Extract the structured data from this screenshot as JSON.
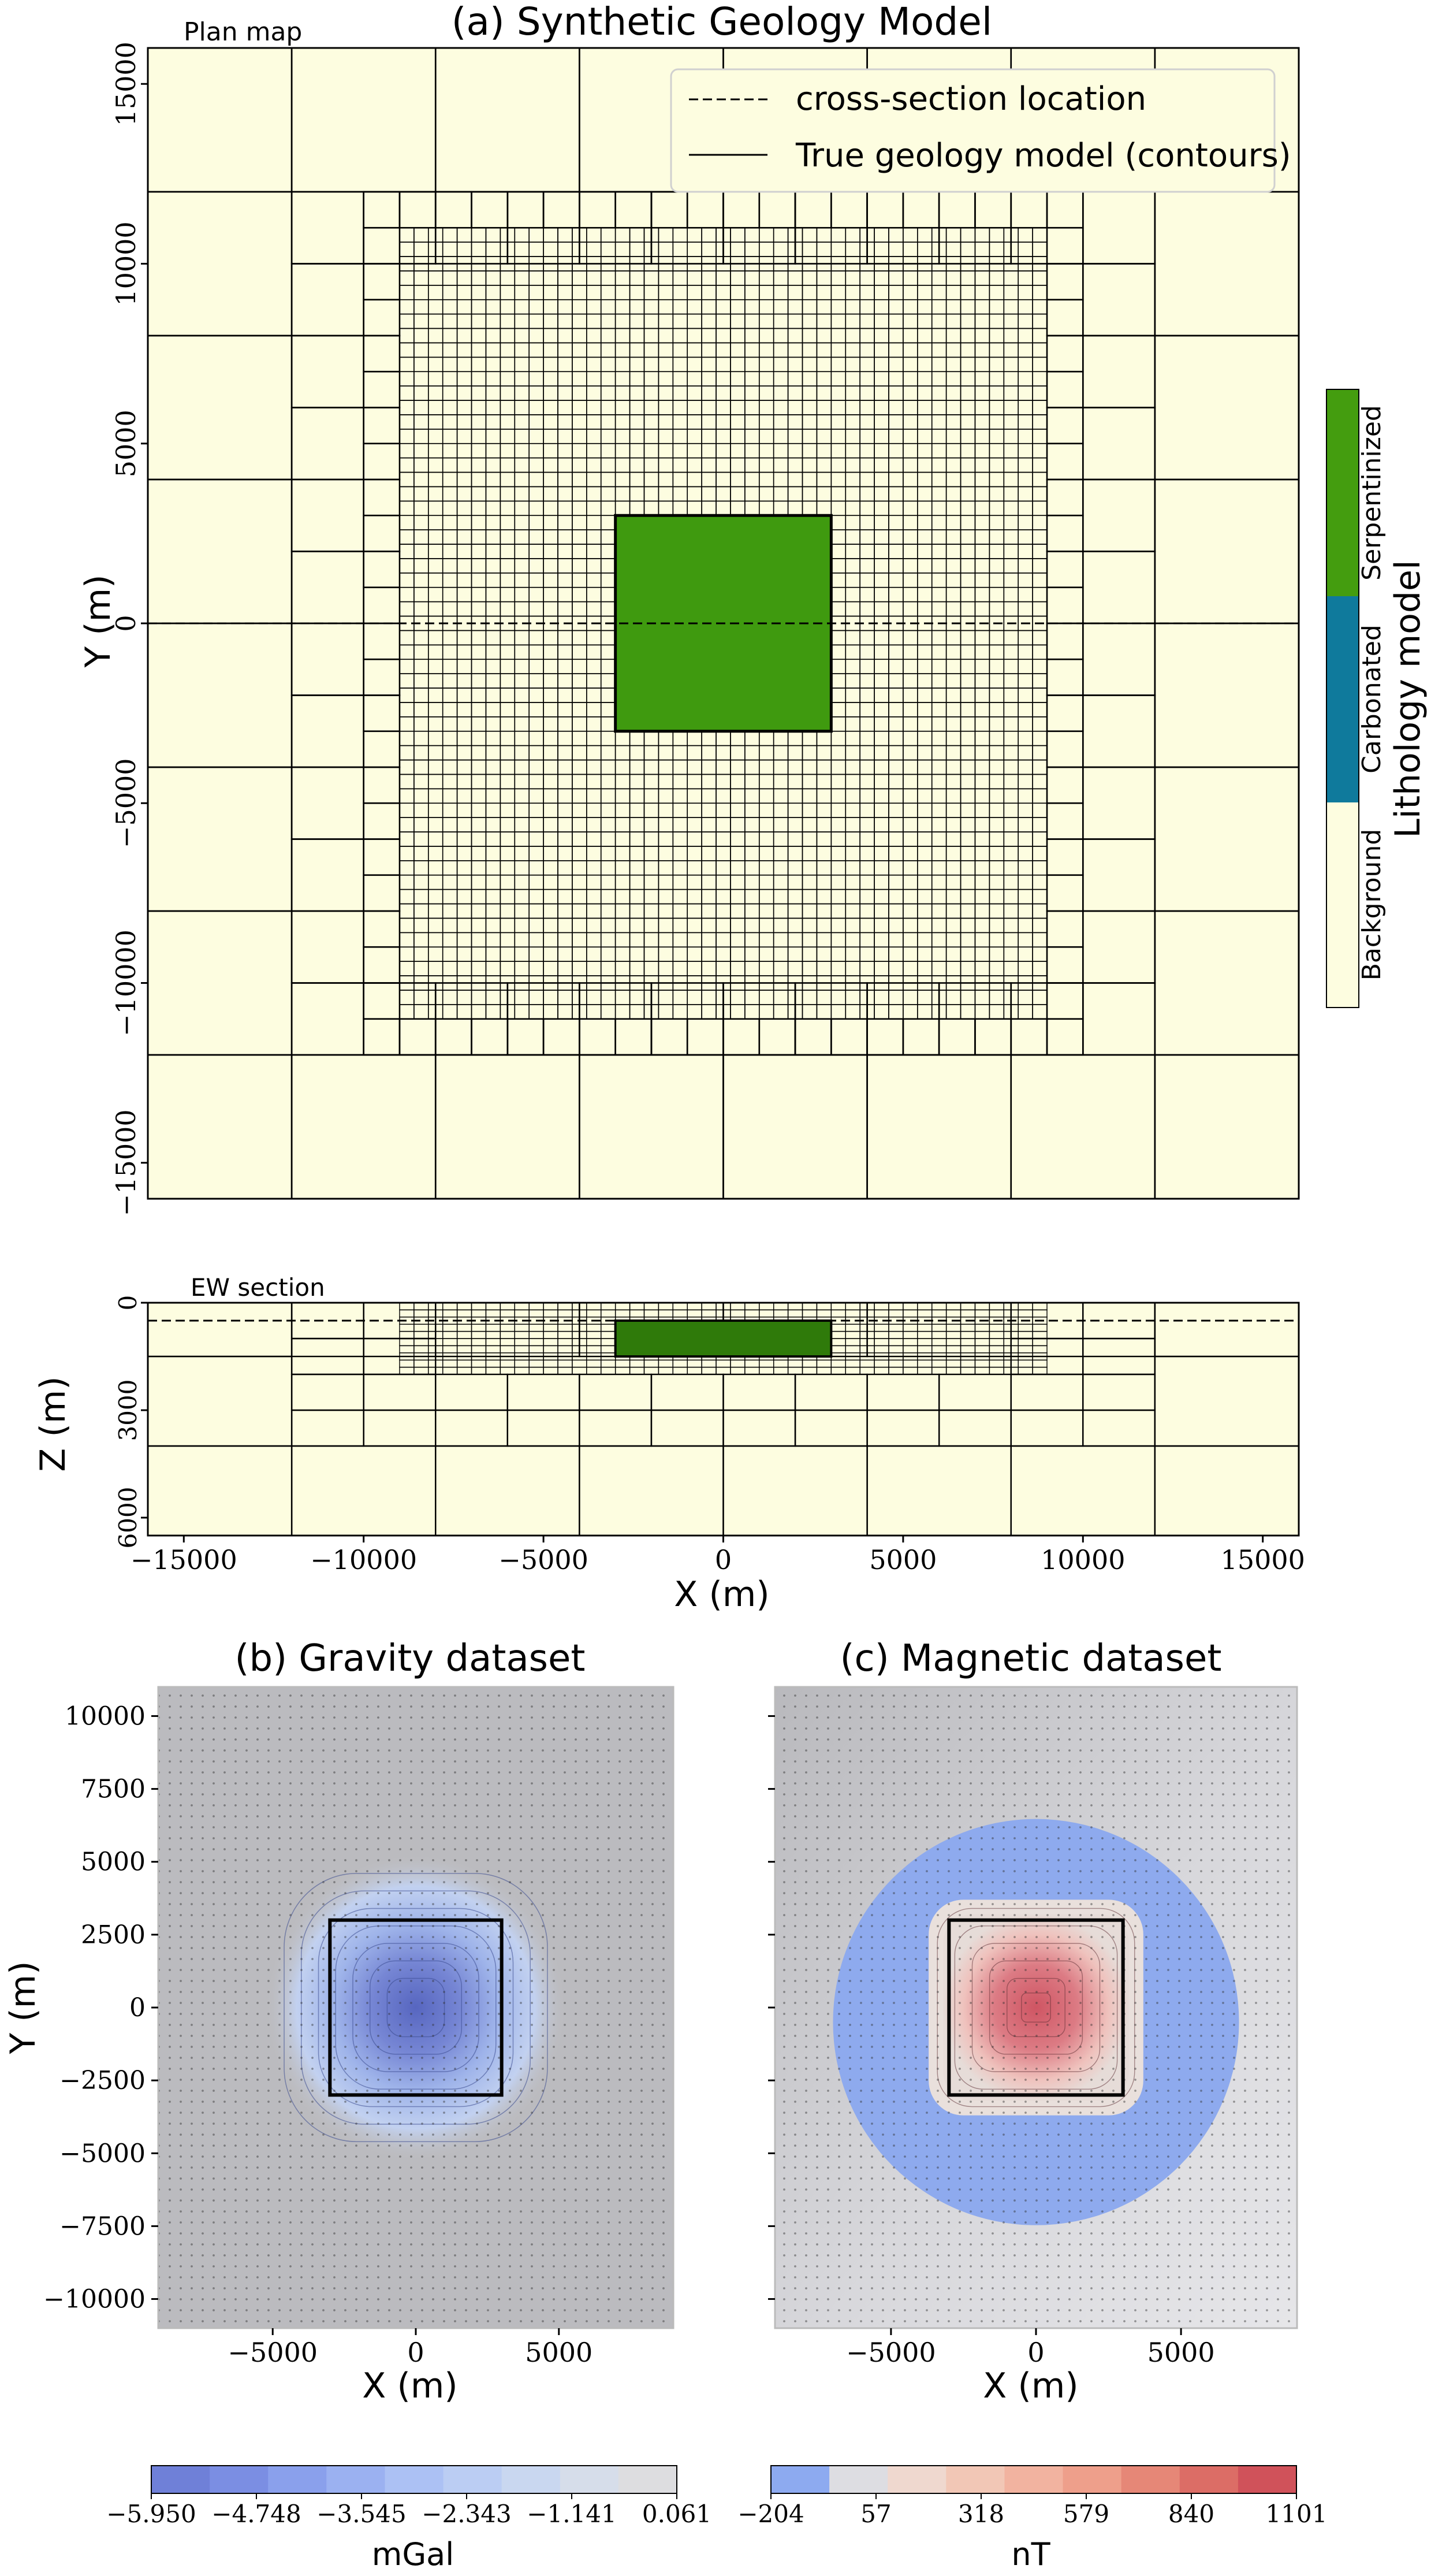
{
  "chart_data": [
    {
      "id": "plan",
      "type": "heatmap",
      "title": "(a) Synthetic Geology Model",
      "corner_label": "Plan map",
      "xlabel": "",
      "ylabel": "Y (m)",
      "xlim": [
        -16000,
        16000
      ],
      "ylim": [
        -16000,
        16000
      ],
      "yticks": [
        -15000,
        -10000,
        -5000,
        0,
        5000,
        10000,
        15000
      ],
      "ytick_labels": [
        "−15000",
        "−10000",
        "−5000",
        "0",
        "5000",
        "10000",
        "15000"
      ],
      "background_color": "#fdfde0",
      "body_color": "#3f9a0f",
      "body": {
        "xmin": -3000,
        "xmax": 3000,
        "ymin": -3000,
        "ymax": 3000
      },
      "cross_section_y": 0,
      "legend": {
        "placement": "upper-right",
        "items": [
          {
            "label": "cross-section location",
            "style": "dashed"
          },
          {
            "label": "True geology model (contours)",
            "style": "solid"
          }
        ]
      },
      "mesh": {
        "fine_cell": 400,
        "fine_extent": [
          -9000,
          9000,
          -11000,
          11000
        ],
        "coarse_levels": [
          800,
          1600,
          3200,
          4000
        ]
      }
    },
    {
      "id": "section",
      "type": "heatmap",
      "corner_label": "EW section",
      "xlabel": "X (m)",
      "ylabel": "Z (m)",
      "xlim": [
        -16000,
        16000
      ],
      "ylim": [
        -6500,
        0
      ],
      "xticks": [
        -15000,
        -10000,
        -5000,
        0,
        5000,
        10000,
        15000
      ],
      "xtick_labels": [
        "−15000",
        "−10000",
        "−5000",
        "0",
        "5000",
        "10000",
        "15000"
      ],
      "yticks": [
        0,
        -3000,
        -6000
      ],
      "ytick_labels": [
        "0",
        "3000",
        "6000"
      ],
      "body": {
        "xmin": -3000,
        "xmax": 3000,
        "zmin": -1500,
        "zmax": -500
      },
      "section_depth": -500
    },
    {
      "id": "gravity",
      "type": "heatmap",
      "title": "(b) Gravity dataset",
      "xlabel": "X (m)",
      "ylabel": "Y (m)",
      "xlim": [
        -9000,
        9000
      ],
      "ylim": [
        -11000,
        11000
      ],
      "xticks": [
        -5000,
        0,
        5000
      ],
      "xtick_labels": [
        "−5000",
        "0",
        "5000"
      ],
      "yticks": [
        10000,
        7500,
        5000,
        2500,
        0,
        -2500,
        -5000,
        -7500,
        -10000
      ],
      "ytick_labels": [
        "10000",
        "7500",
        "5000",
        "2500",
        "0",
        "−2500",
        "−5000",
        "−7500",
        "−10000"
      ],
      "anomaly_min": -5.95,
      "anomaly_max": 0.061,
      "body": {
        "xmin": -3000,
        "xmax": 3000,
        "ymin": -3000,
        "ymax": 3000
      },
      "colorbar": {
        "unit": "mGal",
        "tick_labels": [
          "−5.950",
          "−4.748",
          "−3.545",
          "−2.343",
          "−1.141",
          "0.061"
        ],
        "colors": [
          "#6f80d8",
          "#7b8ee3",
          "#8aa0ec",
          "#9bb1f1",
          "#acc1f4",
          "#bbcdf3",
          "#c9d7f0",
          "#d6ddea",
          "#dddde0"
        ]
      }
    },
    {
      "id": "magnetic",
      "type": "heatmap",
      "title": "(c) Magnetic dataset",
      "xlabel": "X (m)",
      "ylabel": "",
      "xlim": [
        -9000,
        9000
      ],
      "ylim": [
        -11000,
        11000
      ],
      "xticks": [
        -5000,
        0,
        5000
      ],
      "xtick_labels": [
        "−5000",
        "0",
        "5000"
      ],
      "anomaly_min": -204,
      "anomaly_max": 1101,
      "body": {
        "xmin": -3000,
        "xmax": 3000,
        "ymin": -3000,
        "ymax": 3000
      },
      "colorbar": {
        "unit": "nT",
        "tick_labels": [
          "−204",
          "57",
          "318",
          "579",
          "840",
          "1101"
        ],
        "colors": [
          "#8daaf0",
          "#dddde2",
          "#efd8cf",
          "#f2c7b6",
          "#f2b3a0",
          "#ee9f8b",
          "#e68777",
          "#dc6d66",
          "#d0525a"
        ]
      }
    }
  ],
  "lithology_colorbar": {
    "title": "Lithology model",
    "classes": [
      {
        "label": "Background",
        "color": "#fdfde0"
      },
      {
        "label": "Carbonated",
        "color": "#0f7a9c"
      },
      {
        "label": "Serpentinized",
        "color": "#449d0f"
      }
    ]
  }
}
